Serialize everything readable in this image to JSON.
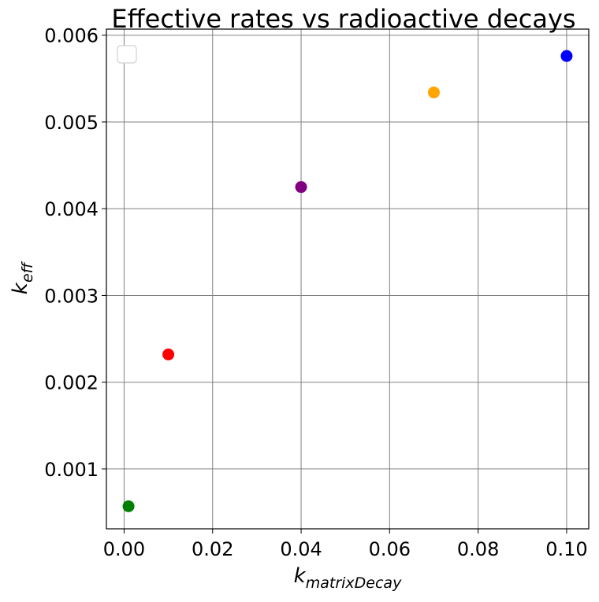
{
  "chart_data": {
    "type": "scatter",
    "title": "Effective rates vs radioactive decays",
    "xlabel": {
      "main": "k",
      "sub": "matrixDecay"
    },
    "ylabel": {
      "main": "k",
      "sub": "eff"
    },
    "xlim": [
      -0.004,
      0.105
    ],
    "ylim": [
      0.00031,
      0.00607
    ],
    "xticks": [
      0.0,
      0.02,
      0.04,
      0.06,
      0.08,
      0.1
    ],
    "xtick_labels": [
      "0.00",
      "0.02",
      "0.04",
      "0.06",
      "0.08",
      "0.10"
    ],
    "yticks": [
      0.001,
      0.002,
      0.003,
      0.004,
      0.005,
      0.006
    ],
    "ytick_labels": [
      "0.001",
      "0.002",
      "0.003",
      "0.004",
      "0.005",
      "0.006"
    ],
    "grid": true,
    "legend": {
      "placement": "top-left",
      "entries": []
    },
    "points": [
      {
        "x": 0.001,
        "y": 0.00057,
        "color": "#008000"
      },
      {
        "x": 0.01,
        "y": 0.00232,
        "color": "#ff0000"
      },
      {
        "x": 0.04,
        "y": 0.00425,
        "color": "#800080"
      },
      {
        "x": 0.07,
        "y": 0.00534,
        "color": "#ffa500"
      },
      {
        "x": 0.1,
        "y": 0.00576,
        "color": "#0000ff"
      }
    ]
  }
}
